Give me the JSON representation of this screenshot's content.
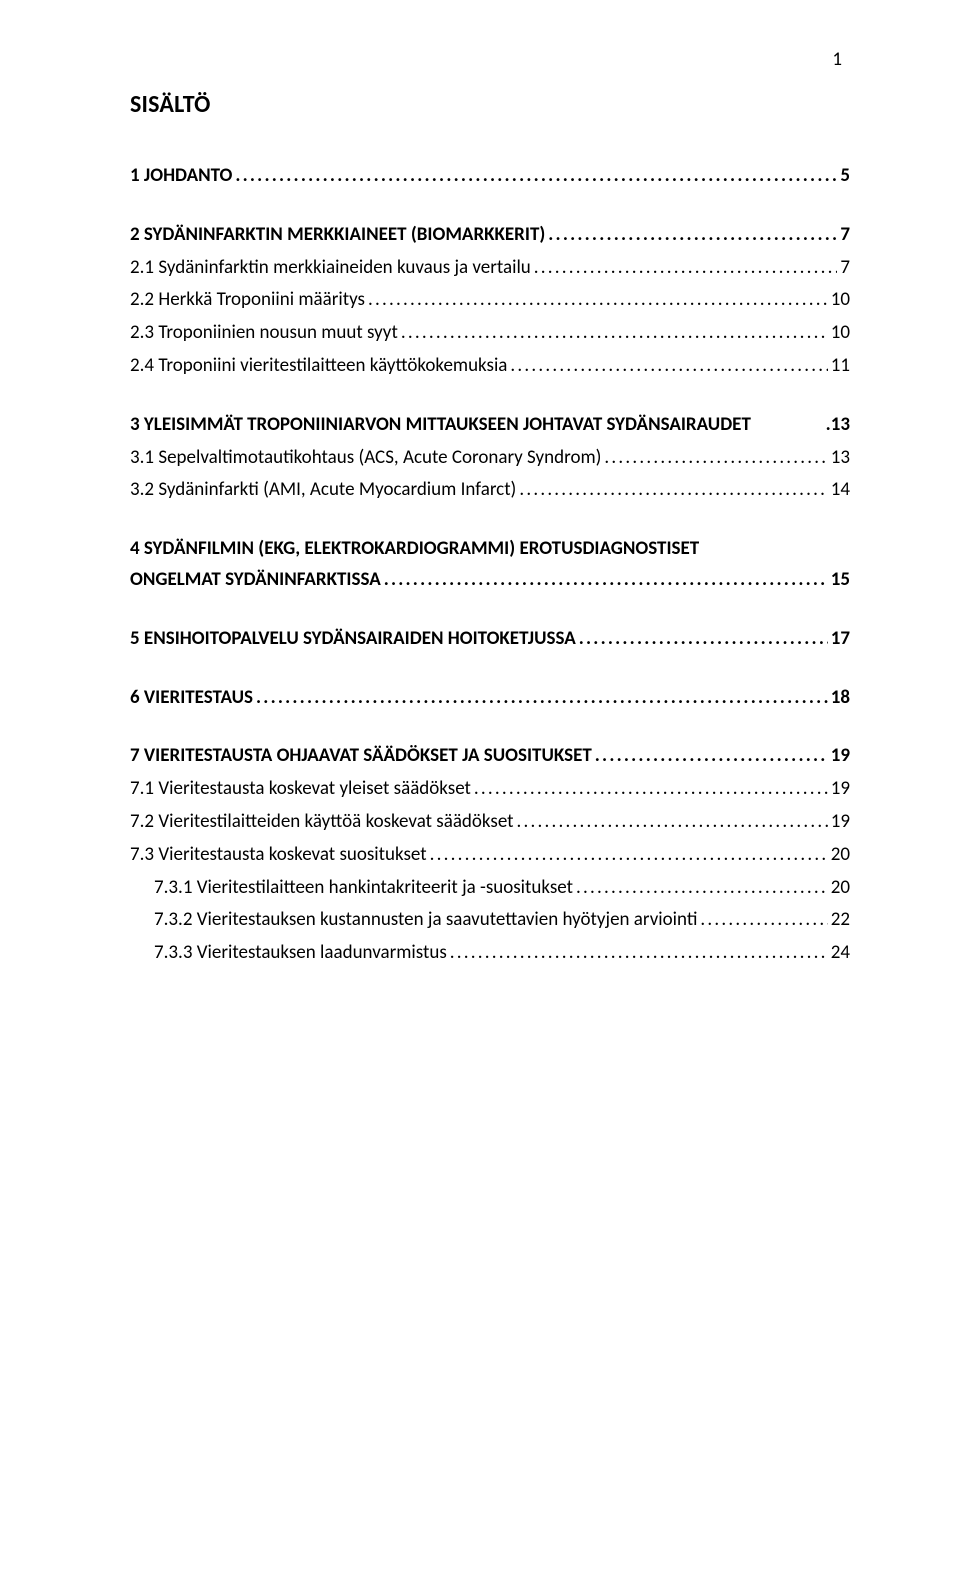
{
  "page": {
    "number": "1",
    "title": "SISÄLTÖ",
    "background_color": "#ffffff",
    "text_color": "#000000",
    "title_fontsize_pt": 18,
    "body_fontsize_pt": 14
  },
  "toc": [
    {
      "level": 0,
      "label": "1 JOHDANTO",
      "page": "5"
    },
    {
      "level": 0,
      "label": "2 SYDÄNINFARKTIN MERKKIAINEET (BIOMARKKERIT)",
      "page": "7"
    },
    {
      "level": 1,
      "label": "2.1 Sydäninfarktin merkkiaineiden kuvaus ja vertailu",
      "page": "7"
    },
    {
      "level": 1,
      "label": "2.2 Herkkä Troponiini määritys",
      "page": "10"
    },
    {
      "level": 1,
      "label": "2.3 Troponiinien nousun muut syyt",
      "page": "10"
    },
    {
      "level": 1,
      "label": "2.4 Troponiini vieritestilaitteen käyttökokemuksia",
      "page": "11"
    },
    {
      "level": 0,
      "label": "3 YLEISIMMÄT TROPONIINIARVON MITTAUKSEEN JOHTAVAT SYDÄNSAIRAUDET",
      "page": "13",
      "no_leader": true
    },
    {
      "level": 1,
      "label": "3.1 Sepelvaltimotautikohtaus (ACS, Acute Coronary Syndrom)",
      "page": "13"
    },
    {
      "level": 1,
      "label": "3.2 Sydäninfarkti (AMI, Acute Myocardium Infarct)",
      "page": "14"
    },
    {
      "level": 0,
      "label": "4 SYDÄNFILMIN (EKG, ELEKTROKARDIOGRAMMI) EROTUSDIAGNOSTISET",
      "page": "",
      "no_page": true,
      "no_leader": true
    },
    {
      "level": 0,
      "label": "ONGELMAT SYDÄNINFARKTISSA",
      "page": "15",
      "continuation": true
    },
    {
      "level": 0,
      "label": "5 ENSIHOITOPALVELU SYDÄNSAIRAIDEN HOITOKETJUSSA",
      "page": "17"
    },
    {
      "level": 0,
      "label": "6 VIERITESTAUS",
      "page": "18"
    },
    {
      "level": 0,
      "label": "7 VIERITESTAUSTA OHJAAVAT SÄÄDÖKSET JA SUOSITUKSET",
      "page": "19"
    },
    {
      "level": 1,
      "label": "7.1 Vieritestausta koskevat yleiset säädökset",
      "page": "19"
    },
    {
      "level": 1,
      "label": "7.2 Vieritestilaitteiden käyttöä koskevat säädökset",
      "page": "19"
    },
    {
      "level": 1,
      "label": "7.3 Vieritestausta koskevat suositukset",
      "page": "20"
    },
    {
      "level": 2,
      "label": "7.3.1 Vieritestilaitteen hankintakriteerit ja -suositukset",
      "page": "20"
    },
    {
      "level": 2,
      "label": "7.3.2 Vieritestauksen kustannusten ja saavutettavien hyötyjen arviointi",
      "page": "22"
    },
    {
      "level": 2,
      "label": "7.3.3 Vieritestauksen laadunvarmistus",
      "page": "24"
    }
  ]
}
